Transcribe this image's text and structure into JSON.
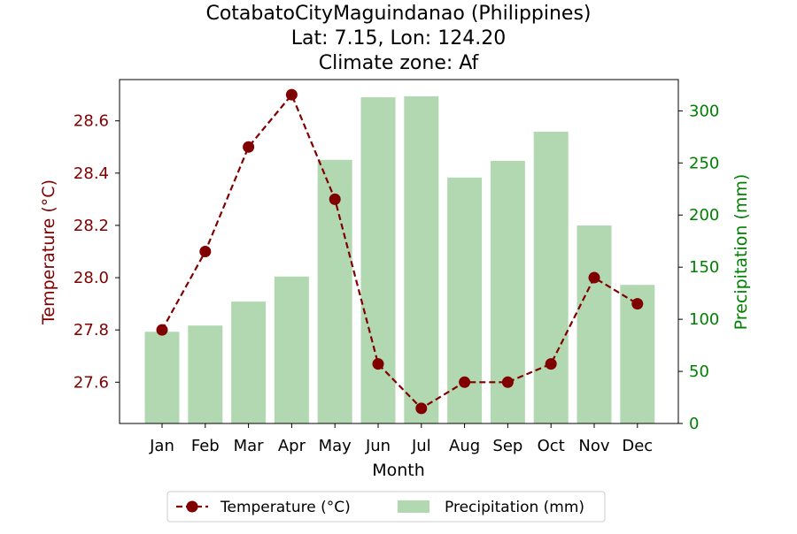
{
  "chart_data": {
    "type": "bar+line",
    "title_lines": [
      "CotabatoCityMaguindanao (Philippines)",
      "Lat: 7.15, Lon: 124.20",
      "Climate zone: Af"
    ],
    "xlabel": "Month",
    "ylabel_left": "Temperature (°C)",
    "ylabel_right": "Precipitation (mm)",
    "categories": [
      "Jan",
      "Feb",
      "Mar",
      "Apr",
      "May",
      "Jun",
      "Jul",
      "Aug",
      "Sep",
      "Oct",
      "Nov",
      "Dec"
    ],
    "series": [
      {
        "name": "Temperature (°C)",
        "type": "line",
        "axis": "left",
        "values": [
          27.8,
          28.1,
          28.5,
          28.7,
          28.3,
          27.67,
          27.5,
          27.6,
          27.6,
          27.67,
          28.0,
          27.9
        ]
      },
      {
        "name": "Precipitation (mm)",
        "type": "bar",
        "axis": "right",
        "values": [
          88,
          94,
          117,
          141,
          253,
          313,
          314,
          236,
          252,
          280,
          190,
          133
        ]
      }
    ],
    "ylim_left": [
      27.442,
      28.758
    ],
    "ylim_right": [
      0,
      330
    ],
    "yticks_left": [
      "27.6",
      "27.8",
      "28.0",
      "28.2",
      "28.4",
      "28.6"
    ],
    "yticks_right": [
      "0",
      "50",
      "100",
      "150",
      "200",
      "250",
      "300"
    ],
    "grid": false,
    "legend_position": "bottom-center",
    "colors": {
      "temperature": "#800000",
      "precipitation": "#b2d8b2",
      "right_axis": "#008000",
      "left_axis": "#800000"
    }
  }
}
